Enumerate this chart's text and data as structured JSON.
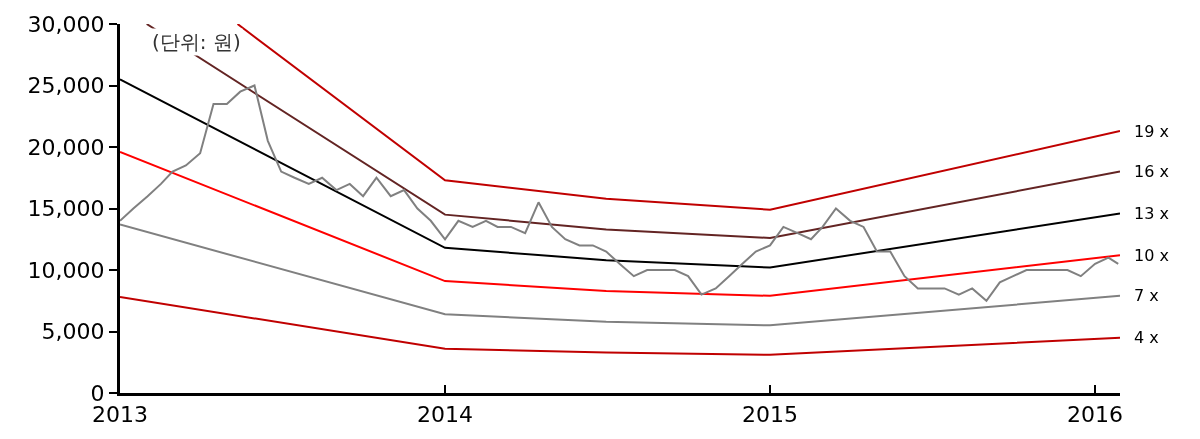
{
  "chart_data": {
    "type": "line",
    "annotations": [
      "(단위: 원)"
    ],
    "xlim": [
      "2013-01-01",
      "2016-01-29"
    ],
    "xticks": [
      {
        "value": "2013-01-01",
        "label": "2013"
      },
      {
        "value": "2014-01-01",
        "label": "2014"
      },
      {
        "value": "2015-01-01",
        "label": "2015"
      },
      {
        "value": "2016-01-01",
        "label": "2016"
      }
    ],
    "ylim": [
      0,
      30000
    ],
    "yticks": [
      {
        "value": 0,
        "label": "0"
      },
      {
        "value": 5000,
        "label": "5,000"
      },
      {
        "value": 10000,
        "label": "10,000"
      },
      {
        "value": 15000,
        "label": "15,000"
      },
      {
        "value": 20000,
        "label": "20,000"
      },
      {
        "value": 25000,
        "label": "25,000"
      },
      {
        "value": 30000,
        "label": "30,000"
      }
    ],
    "legend": false,
    "marker": "none",
    "line_style": "solid",
    "series": [
      {
        "name": "19 x",
        "color": "#c00000",
        "x": [
          "2013-05-13",
          "2014-01-01",
          "2014-07-01",
          "2015-01-01",
          "2016-01-29"
        ],
        "values": [
          30000,
          17300,
          15800,
          14900,
          21300
        ]
      },
      {
        "name": "16 x",
        "color": "#632423",
        "x": [
          "2013-01-31",
          "2014-01-01",
          "2014-07-01",
          "2015-01-01",
          "2016-01-29"
        ],
        "values": [
          30000,
          14500,
          13300,
          12600,
          18000
        ]
      },
      {
        "name": "13 x",
        "color": "#000000",
        "x": [
          "2013-01-01",
          "2014-01-01",
          "2014-07-01",
          "2015-01-01",
          "2016-01-29"
        ],
        "values": [
          25500,
          11800,
          10800,
          10200,
          14600
        ]
      },
      {
        "name": "10 x",
        "color": "#ff0000",
        "x": [
          "2013-01-01",
          "2014-01-01",
          "2014-07-01",
          "2015-01-01",
          "2016-01-29"
        ],
        "values": [
          19600,
          9100,
          8300,
          7900,
          11200
        ]
      },
      {
        "name": "7 x",
        "color": "#808080",
        "x": [
          "2013-01-01",
          "2014-01-01",
          "2014-07-01",
          "2015-01-01",
          "2016-01-29"
        ],
        "values": [
          13700,
          6400,
          5800,
          5500,
          7900
        ]
      },
      {
        "name": "4 x",
        "color": "#c00000",
        "x": [
          "2013-01-01",
          "2014-01-01",
          "2014-07-01",
          "2015-01-01",
          "2016-01-29"
        ],
        "values": [
          7800,
          3600,
          3300,
          3100,
          4500
        ]
      },
      {
        "color": "#808080",
        "x": [
          "2013-01-01",
          "2013-01-16",
          "2013-02-01",
          "2013-02-16",
          "2013-03-01",
          "2013-03-16",
          "2013-04-01",
          "2013-04-16",
          "2013-05-01",
          "2013-05-16",
          "2013-06-01",
          "2013-06-16",
          "2013-07-01",
          "2013-07-16",
          "2013-08-01",
          "2013-08-16",
          "2013-09-01",
          "2013-09-16",
          "2013-10-01",
          "2013-10-16",
          "2013-11-01",
          "2013-11-16",
          "2013-12-01",
          "2013-12-16",
          "2014-01-01",
          "2014-01-16",
          "2014-02-01",
          "2014-02-16",
          "2014-03-01",
          "2014-03-16",
          "2014-04-01",
          "2014-04-16",
          "2014-05-01",
          "2014-05-16",
          "2014-06-01",
          "2014-06-16",
          "2014-07-01",
          "2014-07-16",
          "2014-08-01",
          "2014-08-16",
          "2014-09-01",
          "2014-09-16",
          "2014-10-01",
          "2014-10-16",
          "2014-11-01",
          "2014-11-16",
          "2014-12-01",
          "2014-12-16",
          "2015-01-01",
          "2015-01-16",
          "2015-02-01",
          "2015-02-16",
          "2015-03-01",
          "2015-03-16",
          "2015-04-01",
          "2015-04-16",
          "2015-05-01",
          "2015-05-16",
          "2015-06-01",
          "2015-06-16",
          "2015-07-01",
          "2015-07-16",
          "2015-08-01",
          "2015-08-16",
          "2015-09-01",
          "2015-09-16",
          "2015-10-01",
          "2015-10-16",
          "2015-11-01",
          "2015-11-16",
          "2015-12-01",
          "2015-12-16",
          "2016-01-01",
          "2016-01-16",
          "2016-01-27"
        ],
        "values": [
          14000,
          15000,
          16000,
          17000,
          18000,
          18500,
          19500,
          23500,
          23500,
          24500,
          25000,
          20500,
          18000,
          17500,
          17000,
          17500,
          16500,
          17000,
          16000,
          17500,
          16000,
          16500,
          15000,
          14000,
          12500,
          14000,
          13500,
          14000,
          13500,
          13500,
          13000,
          15500,
          13500,
          12500,
          12000,
          12000,
          11500,
          10500,
          9500,
          10000,
          10000,
          10000,
          9500,
          8000,
          8500,
          9500,
          10500,
          11500,
          12000,
          13500,
          13000,
          12500,
          13500,
          15000,
          14000,
          13500,
          11500,
          11500,
          9500,
          8500,
          8500,
          8500,
          8000,
          8500,
          7500,
          9000,
          9500,
          10000,
          10000,
          10000,
          10000,
          9500,
          10500,
          11000,
          10500
        ]
      }
    ]
  }
}
